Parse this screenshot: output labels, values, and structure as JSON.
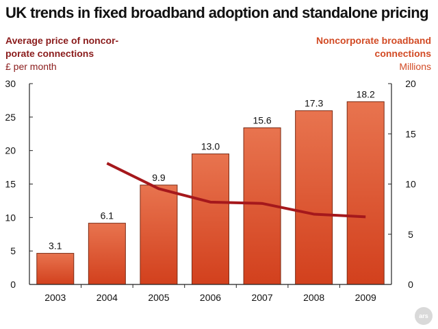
{
  "title": "UK trends in fixed broadband adoption and standalone pricing",
  "left_axis": {
    "label_line1": "Average price of noncor-",
    "label_line2": "porate connections",
    "unit": "£ per month"
  },
  "right_axis": {
    "label_line1": "Noncorporate broadband",
    "label_line2": "connections",
    "unit": "Millions"
  },
  "logo_text": "ars",
  "colors": {
    "bar_top": "#e8744f",
    "bar_bottom": "#d2401d",
    "bar_stroke": "#7a2a14",
    "line": "#a5181c",
    "left_text": "#8a1b1b",
    "right_text": "#d24a24"
  },
  "chart_data": {
    "type": "bar",
    "categories": [
      "2003",
      "2004",
      "2005",
      "2006",
      "2007",
      "2008",
      "2009"
    ],
    "bar_series": {
      "axis": "right",
      "values": [
        3.1,
        6.1,
        9.9,
        13.0,
        15.6,
        17.3,
        18.2
      ],
      "labels": [
        "3.1",
        "6.1",
        "9.9",
        "13.0",
        "15.6",
        "17.3",
        "18.2"
      ]
    },
    "line_series": {
      "axis": "left",
      "values": [
        null,
        18.1,
        14.3,
        12.3,
        12.1,
        10.5,
        10.1
      ]
    },
    "left_axis": {
      "ylim": [
        0,
        30
      ],
      "ticks": [
        "0",
        "5",
        "10",
        "15",
        "20",
        "25",
        "30"
      ]
    },
    "right_axis": {
      "ylim": [
        0,
        20
      ],
      "ticks": [
        "0",
        "5",
        "10",
        "15",
        "20"
      ]
    },
    "grid": false
  }
}
